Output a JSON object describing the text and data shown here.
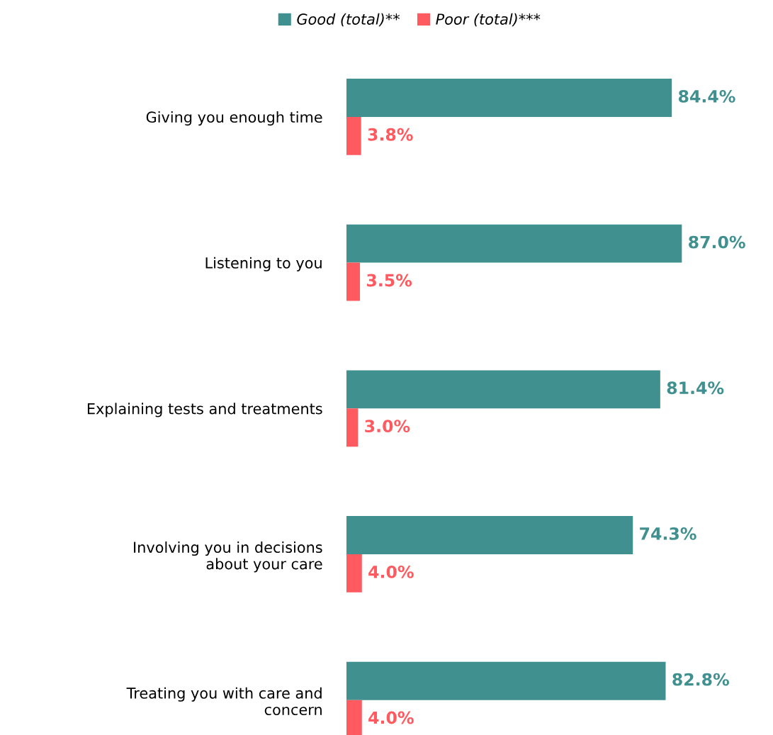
{
  "chart_data": {
    "type": "bar",
    "orientation": "horizontal",
    "categories": [
      "Giving you enough time",
      "Listening to you",
      "Explaining tests and treatments",
      "Involving you in decisions\nabout your care",
      "Treating you with care and\nconcern"
    ],
    "series": [
      {
        "name": "Good (total)**",
        "color": "#3f908e",
        "values": [
          84.4,
          87.0,
          81.4,
          74.3,
          82.8
        ],
        "value_labels": [
          "84.4%",
          "87.0%",
          "81.4%",
          "74.3%",
          "82.8%"
        ]
      },
      {
        "name": "Poor (total)***",
        "color": "#ff5a5f",
        "values": [
          3.8,
          3.5,
          3.0,
          4.0,
          4.0
        ],
        "value_labels": [
          "3.8%",
          "3.5%",
          "3.0%",
          "4.0%",
          "4.0%"
        ]
      }
    ],
    "tick_labels": "y",
    "grid": false,
    "legend": "top"
  }
}
